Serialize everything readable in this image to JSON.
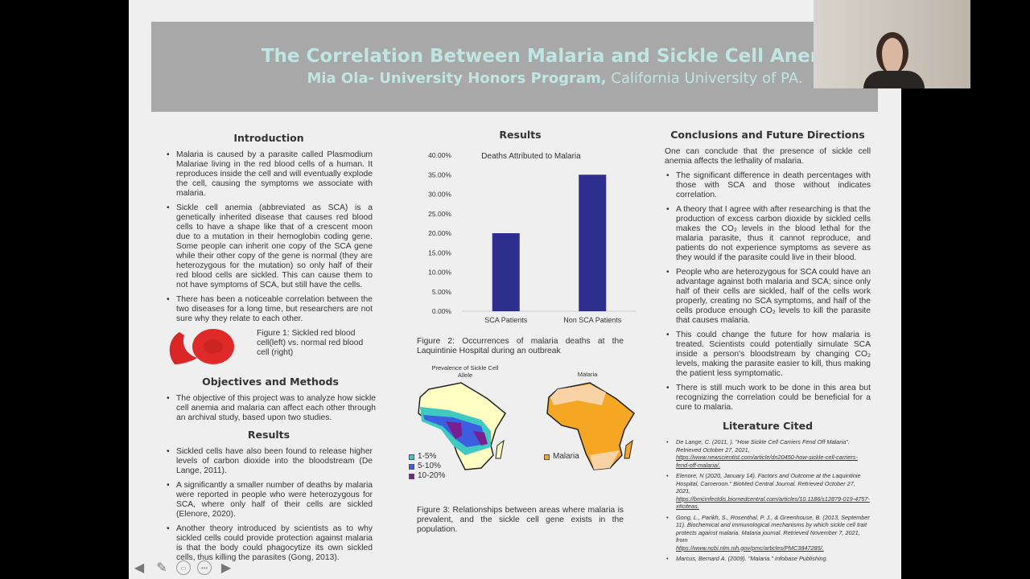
{
  "header": {
    "title": "The Correlation Between Malaria and Sickle Cell Anemia",
    "author": "Mia Ola- University Honors Program,",
    "institution": " California University of PA."
  },
  "intro": {
    "heading": "Introduction",
    "bullets": [
      "Malaria is caused by a parasite called Plasmodium Malariae living in the red blood cells of a human. It reproduces inside the cell and will eventually explode the cell, causing the symptoms we associate with malaria.",
      "Sickle cell anemia (abbreviated as SCA) is a genetically inherited disease that causes red blood cells to have a shape like that of a crescent moon due to a mutation in their hemoglobin coding gene. Some people can inherit one copy of the SCA gene while their other copy of the gene is normal (they are heterozygous for the mutation) so only half of their red blood cells are sickled. This can cause them to not have symptoms of SCA, but still have the cells.",
      "There has been a noticeable correlation between the two diseases for a long time, but researchers are not sure why they relate to each other."
    ],
    "figure1": "Figure 1: Sickled red blood cell(left) vs. normal red blood cell (right)"
  },
  "objectives": {
    "heading": "Objectives and Methods",
    "bullets": [
      "The objective of this project was to analyze how sickle cell anemia and malaria can affect each other through an archival study, based upon two studies."
    ]
  },
  "results_left": {
    "heading": "Results",
    "bullets": [
      "Sickled cells have also been found to release higher levels of carbon dioxide into the bloodstream (De Lange, 2011).",
      "A significantly a smaller number of deaths by malaria were reported in people who were heterozygous for SCA, where only half of their cells are sickled (Elenore, 2020).",
      "Another theory introduced by scientists as to why sickled cells could provide protection against malaria is that the body could phagocytize its own sickled cells, thus killing the parasites (Gong, 2013)."
    ]
  },
  "results_mid": {
    "heading": "Results",
    "figure2": "Figure 2: Occurrences of malaria deaths at the Laquintinie Hospital during an outbreak",
    "figure3": "Figure 3: Relationships between areas where malaria is prevalent, and the sickle cell gene exists in the population.",
    "map1_title": "Prevalence of Sickle Cell Allele",
    "map2_title": "Malaria",
    "map1_legend": [
      {
        "label": "1-5%",
        "color": "#3fc9c0"
      },
      {
        "label": "5-10%",
        "color": "#3b5fe0"
      },
      {
        "label": "10-20%",
        "color": "#7a1f8f"
      }
    ],
    "map2_legend": [
      {
        "label": "Malaria",
        "color": "#f5a623"
      }
    ]
  },
  "chart_data": {
    "type": "bar",
    "title": "Deaths Attributed to Malaria",
    "categories": [
      "SCA Patients",
      "Non SCA Patients"
    ],
    "values": [
      20.0,
      35.0
    ],
    "ylim": [
      0,
      40
    ],
    "yticks": [
      "0.00%",
      "5.00%",
      "10.00%",
      "15.00%",
      "20.00%",
      "25.00%",
      "30.00%",
      "35.00%",
      "40.00%"
    ],
    "color": "#2e2e8f",
    "xlabel": "",
    "ylabel": ""
  },
  "conclusions": {
    "heading": "Conclusions and Future Directions",
    "intro": "One can conclude that the presence of sickle cell anemia affects the lethality of malaria.",
    "bullets": [
      "The significant difference in death percentages with those with SCA and those without indicates correlation.",
      "A theory that I agree with after researching is that the production of excess carbon dioxide by sickled cells makes the CO₂ levels in the blood lethal for the malaria parasite, thus it cannot reproduce, and patients do not experience symptoms as severe as they would if the parasite could live in their blood.",
      "People who are heterozygous for SCA could have an advantage against both malaria and SCA; since only half of their cells are sickled, half of the cells work properly, creating no SCA symptoms, and half of the cells produce enough CO₂ levels to kill the parasite that causes malaria.",
      "This could change the future for how malaria is treated. Scientists could potentially simulate SCA inside a person's bloodstream by changing CO₂ levels, making the parasite easier to kill, thus making the patient less symptomatic.",
      "There is still much work to be done in this area but recognizing the correlation could be beneficial for a cure to malaria."
    ]
  },
  "literature": {
    "heading": "Literature Cited",
    "refs": [
      {
        "text": "De Lange, C. (2011, ). \"How Sickle Cell Carriers Fend Off Malaria\". Retrieved October 27, 2021,",
        "link": "https://www.newscientist.com/article/dn20450-how-sickle-cell-carriers-fend-off-malaria/."
      },
      {
        "text": "Elenore, N (2020, January 14). Factors and Outcome at the Laquintinie Hospital, Cameroon.\" BioMed Central Journal. Retrieved October 27, 2021,",
        "link": "https://bmcinfectdis.biomedcentral.com/articles/10.1186/s12879-019-4757-x#citeas."
      },
      {
        "text": "Gong, L., Parikh, S., Rosenthal, P. J., & Greenhouse, B. (2013, September 11). Biochemical and immunological mechanisms by which sickle cell trait protects against malaria. Malaria journal. Retrieved November 7, 2021, from",
        "link": "https://www.ncbi.nlm.nih.gov/pmc/articles/PMC3847285/."
      },
      {
        "text": "Marcus, Bernard A. (2009). \"Malaria.\" Infobase Publishing.",
        "link": ""
      }
    ]
  },
  "toolbar": {
    "icons": [
      "arrow-left",
      "pen",
      "subtitles",
      "more",
      "arrow-right"
    ]
  }
}
